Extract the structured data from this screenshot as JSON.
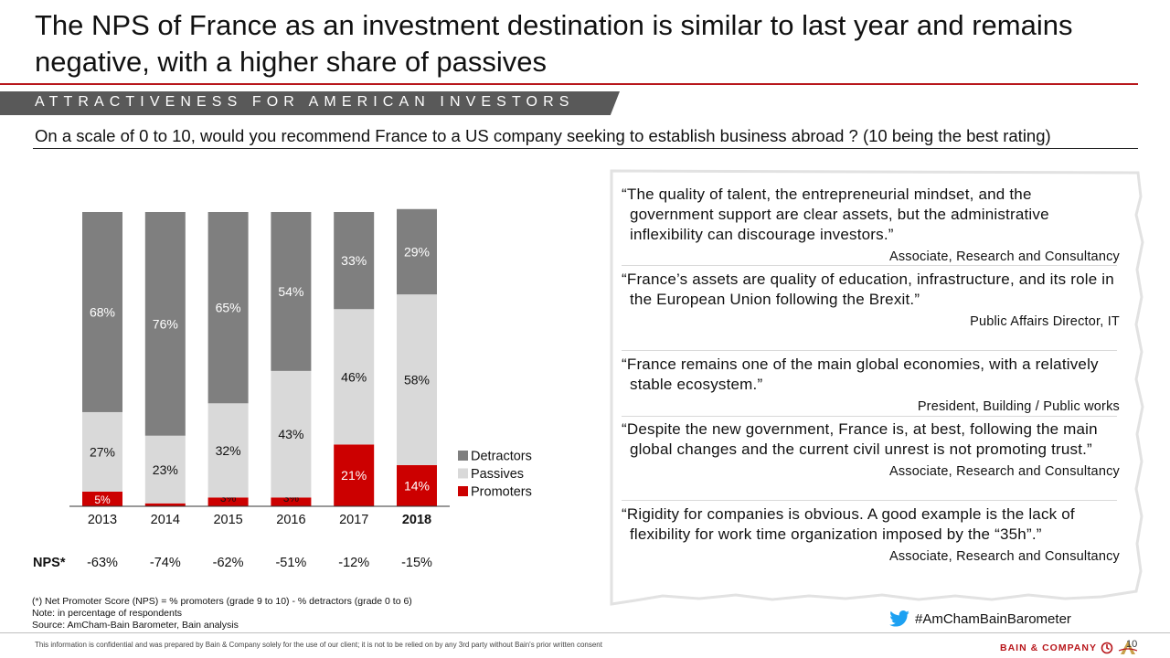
{
  "title": "The NPS of France as an investment destination is similar to last year and remains negative, with a higher share of passives",
  "banner": "ATTRACTIVENESS FOR AMERICAN INVESTORS",
  "question": "On a scale of 0 to 10, would you recommend France to a US company seeking to establish business abroad ? (10 being the best rating)",
  "chart_data": {
    "type": "bar",
    "stacked": true,
    "categories": [
      "2013",
      "2014",
      "2015",
      "2016",
      "2017",
      "2018"
    ],
    "highlighted_category": "2018",
    "series": [
      {
        "name": "Promoters",
        "color": "#cc0000",
        "values": [
          5,
          1,
          3,
          3,
          21,
          14
        ],
        "labels": [
          "5%",
          "1%",
          "3%",
          "3%",
          "21%",
          "14%"
        ]
      },
      {
        "name": "Passives",
        "color": "#d9d9d9",
        "values": [
          27,
          23,
          32,
          43,
          46,
          58
        ],
        "labels": [
          "27%",
          "23%",
          "32%",
          "43%",
          "46%",
          "58%"
        ]
      },
      {
        "name": "Detractors",
        "color": "#7f7f7f",
        "values": [
          68,
          76,
          65,
          54,
          33,
          29
        ],
        "labels": [
          "68%",
          "76%",
          "65%",
          "54%",
          "33%",
          "29%"
        ]
      }
    ],
    "legend": [
      "Detractors",
      "Passives",
      "Promoters"
    ],
    "legend_position": "right",
    "nps_label": "NPS*",
    "nps": [
      "-63%",
      "-74%",
      "-62%",
      "-51%",
      "-12%",
      "-15%"
    ],
    "ylim": [
      0,
      100
    ]
  },
  "quotes": [
    {
      "text": "“The quality of talent, the entrepreneurial mindset, and the government support are clear assets, but the administrative inflexibility can discourage investors.”",
      "source": "Associate, Research and Consultancy"
    },
    {
      "text": "“France’s assets are quality of education, infrastructure, and its role in the European Union following the Brexit.”",
      "source": "Public Affairs Director, IT"
    },
    {
      "text": "“France remains one of the main global economies, with a relatively stable ecosystem.”",
      "source": "President, Building / Public works"
    },
    {
      "text": "“Despite the new government, France is, at best, following the main global changes and the current civil unrest is not promoting trust.”",
      "source": "Associate, Research and Consultancy"
    },
    {
      "text": "“Rigidity for companies is obvious. A good example is the lack of flexibility for work time organization imposed by the “35h”.”",
      "source": "Associate, Research and Consultancy"
    }
  ],
  "footnotes": [
    "(*) Net Promoter Score (NPS) = % promoters (grade 9 to 10) - % detractors (grade 0 to 6)",
    "Note: in percentage of respondents",
    "Source: AmCham-Bain Barometer, Bain analysis"
  ],
  "hashtag": "#AmChamBainBarometer",
  "confidential": "This information is confidential and was prepared by Bain & Company solely for the use of our client; it is not to be relied on by any 3rd party without Bain's prior written consent",
  "brand": "BAIN & COMPANY",
  "page_number": "10",
  "colors": {
    "accent": "#b8161b",
    "banner": "#595959",
    "twitter": "#1da1f2"
  }
}
